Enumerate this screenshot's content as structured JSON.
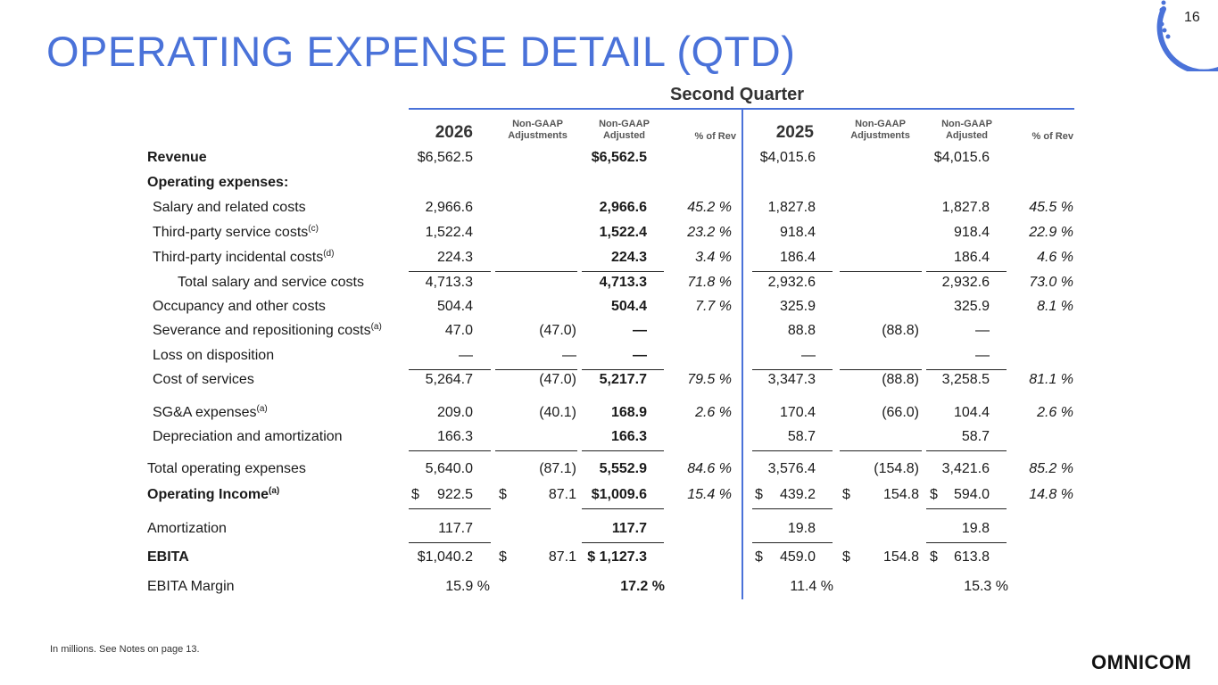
{
  "title": "OPERATING EXPENSE DETAIL (QTD)",
  "page_number": "16",
  "section_title": "Second Quarter",
  "headers": {
    "year_a": "2026",
    "year_b": "2025",
    "nongaap_adj_1": "Non-GAAP",
    "nongaap_adj_2": "Adjustments",
    "nongaap_adjd_1": "Non-GAAP",
    "nongaap_adjd_2": "Adjusted",
    "pct_rev": "% of Rev"
  },
  "rows": [
    {
      "label": "Revenue",
      "sup": "",
      "bold": true,
      "indent": 0,
      "c1": "$6,562.5",
      "c2": "",
      "c3": "$6,562.5",
      "c4": "",
      "c5": "$4,015.6",
      "c6": "",
      "c7": "$4,015.6",
      "c8": ""
    },
    {
      "label": "Operating expenses:",
      "sup": "",
      "bold": true,
      "indent": 0,
      "c1": "",
      "c2": "",
      "c3": "",
      "c4": "",
      "c5": "",
      "c6": "",
      "c7": "",
      "c8": ""
    },
    {
      "label": "Salary and related costs",
      "sup": "",
      "bold": false,
      "indent": 1,
      "c1": "2,966.6",
      "c2": "",
      "c3": "2,966.6",
      "c4": "45.2 %",
      "c5": "1,827.8",
      "c6": "",
      "c7": "1,827.8",
      "c8": "45.5 %"
    },
    {
      "label": "Third-party service costs",
      "sup": "(c)",
      "bold": false,
      "indent": 1,
      "c1": "1,522.4",
      "c2": "",
      "c3": "1,522.4",
      "c4": "23.2 %",
      "c5": "918.4",
      "c6": "",
      "c7": "918.4",
      "c8": "22.9 %"
    },
    {
      "label": "Third-party incidental costs",
      "sup": "(d)",
      "bold": false,
      "indent": 1,
      "c1": "224.3",
      "c2": "",
      "c3": "224.3",
      "c4": "3.4 %",
      "c5": "186.4",
      "c6": "",
      "c7": "186.4",
      "c8": "4.6 %"
    },
    {
      "label": "Total salary and service costs",
      "sup": "",
      "bold": false,
      "indent": 2,
      "c1": "4,713.3",
      "c2": "",
      "c3": "4,713.3",
      "c4": "71.8 %",
      "c5": "2,932.6",
      "c6": "",
      "c7": "2,932.6",
      "c8": "73.0 %"
    },
    {
      "label": "Occupancy and other costs",
      "sup": "",
      "bold": false,
      "indent": 1,
      "c1": "504.4",
      "c2": "",
      "c3": "504.4",
      "c4": "7.7 %",
      "c5": "325.9",
      "c6": "",
      "c7": "325.9",
      "c8": "8.1 %"
    },
    {
      "label": "Severance and repositioning costs",
      "sup": "(a)",
      "bold": false,
      "indent": 1,
      "c1": "47.0",
      "c2": "(47.0)",
      "c3": "—",
      "c4": "",
      "c5": "88.8",
      "c6": "(88.8)",
      "c7": "—",
      "c8": ""
    },
    {
      "label": "Loss on disposition",
      "sup": "",
      "bold": false,
      "indent": 1,
      "c1": "—",
      "c2": "—",
      "c3": "—",
      "c4": "",
      "c5": "—",
      "c6": "",
      "c7": "—",
      "c8": ""
    },
    {
      "label": "Cost of services",
      "sup": "",
      "bold": false,
      "indent": 1,
      "c1": "5,264.7",
      "c2": "(47.0)",
      "c3": "5,217.7",
      "c4": "79.5 %",
      "c5": "3,347.3",
      "c6": "(88.8)",
      "c7": "3,258.5",
      "c8": "81.1 %"
    },
    {
      "label": "SG&A expenses",
      "sup": "(a)",
      "bold": false,
      "indent": 1,
      "c1": "209.0",
      "c2": "(40.1)",
      "c3": "168.9",
      "c4": "2.6 %",
      "c5": "170.4",
      "c6": "(66.0)",
      "c7": "104.4",
      "c8": "2.6 %"
    },
    {
      "label": "Depreciation and amortization",
      "sup": "",
      "bold": false,
      "indent": 1,
      "c1": "166.3",
      "c2": "",
      "c3": "166.3",
      "c4": "",
      "c5": "58.7",
      "c6": "",
      "c7": "58.7",
      "c8": ""
    },
    {
      "label": "Total operating expenses",
      "sup": "",
      "bold": false,
      "indent": 0,
      "c1": "5,640.0",
      "c2": "(87.1)",
      "c3": "5,552.9",
      "c4": "84.6 %",
      "c5": "3,576.4",
      "c6": "(154.8)",
      "c7": "3,421.6",
      "c8": "85.2 %"
    },
    {
      "label": "Operating Income",
      "sup": "(a)",
      "bold": true,
      "indent": 0,
      "c1": "922.5",
      "c2": "87.1",
      "c3": "$1,009.6",
      "c4": "15.4 %",
      "c5": "439.2",
      "c6": "154.8",
      "c7": "594.0",
      "c8": "14.8 %"
    },
    {
      "label": "Amortization",
      "sup": "",
      "bold": false,
      "indent": 0,
      "c1": "117.7",
      "c2": "",
      "c3": "117.7",
      "c4": "",
      "c5": "19.8",
      "c6": "",
      "c7": "19.8",
      "c8": ""
    },
    {
      "label": "EBITA",
      "sup": "",
      "bold": true,
      "indent": 0,
      "c1": "$1,040.2",
      "c2": "87.1",
      "c3": "$ 1,127.3",
      "c4": "",
      "c5": "459.0",
      "c6": "154.8",
      "c7": "613.8",
      "c8": ""
    },
    {
      "label": "EBITA Margin",
      "sup": "",
      "bold": false,
      "indent": 0,
      "c1": "",
      "c2": "",
      "c3": "",
      "c4": "",
      "c5": "",
      "c6": "",
      "c7": "",
      "c8": "",
      "m1": "15.9 %",
      "m2": "17.2 %",
      "m3": "11.4 %",
      "m4": "15.3 %"
    }
  ],
  "dollar_sign": "$",
  "footer": "In millions. See Notes on page 13.",
  "logo": "OMNICOM",
  "colors": {
    "accent": "#4a72d9",
    "text": "#1a1a1a"
  }
}
